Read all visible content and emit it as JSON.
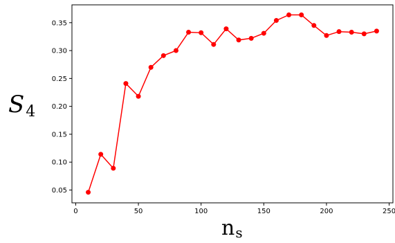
{
  "chart_data": {
    "type": "line",
    "title": "",
    "xlabel_main": "n",
    "xlabel_sub": "s",
    "ylabel_main": "S",
    "ylabel_sub": "4",
    "xlim": [
      -3,
      253
    ],
    "ylim": [
      0.027,
      0.382
    ],
    "xticks": [
      0,
      50,
      100,
      150,
      200,
      250
    ],
    "yticks": [
      0.05,
      0.1,
      0.15,
      0.2,
      0.25,
      0.3,
      0.35
    ],
    "ytick_labels": [
      "0.05",
      "0.10",
      "0.15",
      "0.20",
      "0.25",
      "0.30",
      "0.35"
    ],
    "grid": false,
    "series": [
      {
        "color": "#ff0000",
        "marker": "circle",
        "x": [
          10,
          20,
          30,
          40,
          50,
          60,
          70,
          80,
          90,
          100,
          110,
          120,
          130,
          140,
          150,
          160,
          170,
          180,
          190,
          200,
          210,
          220,
          230,
          240
        ],
        "y": [
          0.046,
          0.114,
          0.089,
          0.241,
          0.218,
          0.27,
          0.291,
          0.3,
          0.333,
          0.332,
          0.311,
          0.339,
          0.319,
          0.322,
          0.331,
          0.354,
          0.364,
          0.364,
          0.345,
          0.327,
          0.334,
          0.333,
          0.33,
          0.335
        ]
      }
    ]
  }
}
